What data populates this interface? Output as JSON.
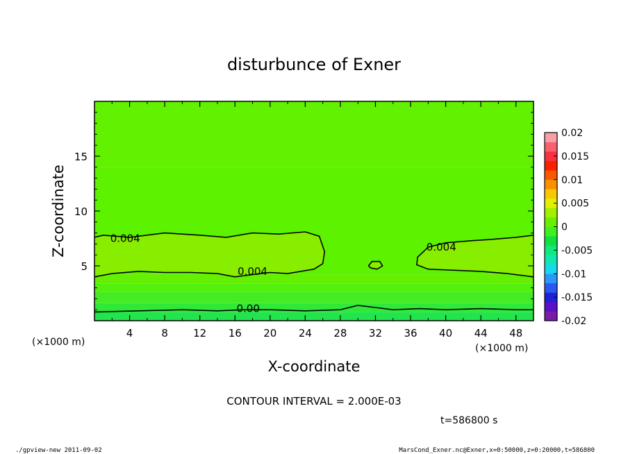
{
  "chart_data": {
    "type": "heatmap",
    "title": "disturbunce of Exner",
    "xlabel": "X-coordinate",
    "ylabel": "Z-coordinate",
    "x_unit_left": "(×1000 m)",
    "x_unit_right": "(×1000 m)",
    "xlim": [
      0,
      50
    ],
    "ylim": [
      0,
      20
    ],
    "x_ticks": [
      4,
      8,
      12,
      16,
      20,
      24,
      28,
      32,
      36,
      40,
      44,
      48
    ],
    "y_ticks": [
      5,
      10,
      15
    ],
    "contour_interval_text": "CONTOUR INTERVAL = 2.000E-03",
    "time_text": "t=586800 s",
    "contour_labels": [
      {
        "text": "0.004",
        "x": 3.5,
        "y": 7.5
      },
      {
        "text": "0.004",
        "x": 18.0,
        "y": 4.5
      },
      {
        "text": "0.004",
        "x": 39.5,
        "y": 6.7
      },
      {
        "text": "0.00",
        "x": 17.5,
        "y": 1.1
      }
    ],
    "colorbar": {
      "min": -0.02,
      "max": 0.02,
      "tick_labels": [
        "0.02",
        "0.015",
        "0.01",
        "0.005",
        "0",
        "-0.005",
        "-0.01",
        "-0.015",
        "-0.02"
      ],
      "colors": [
        "#7a1ca8",
        "#5a10c8",
        "#2020d8",
        "#2a58f0",
        "#2a98f8",
        "#18d8f0",
        "#10e8b0",
        "#10e880",
        "#10e040",
        "#3ef020",
        "#68f000",
        "#a0f000",
        "#e0f000",
        "#f8c800",
        "#f89000",
        "#f85800",
        "#f82000",
        "#f83040",
        "#f86070",
        "#f8a0a8"
      ],
      "colors_order": "bottom-to-top"
    },
    "bands": [
      {
        "y0": 0.0,
        "y1": 0.8,
        "color": "#22e44c"
      },
      {
        "y0": 0.8,
        "y1": 1.6,
        "color": "#30e838"
      },
      {
        "y0": 1.6,
        "y1": 2.6,
        "color": "#44ec24"
      },
      {
        "y0": 2.6,
        "y1": 3.4,
        "color": "#54f010"
      },
      {
        "y0": 3.4,
        "y1": 4.2,
        "color": "#64f000"
      },
      {
        "y0": 4.2,
        "y1": 14.0,
        "color": "#5cf200"
      },
      {
        "y0": 14.0,
        "y1": 20.0,
        "color": "#62f100"
      }
    ],
    "upper_blob_color": "#88ee00",
    "lower_region_color": "#78ef00",
    "contour_lines": [
      {
        "points": [
          [
            0,
            4.0
          ],
          [
            2,
            4.3
          ],
          [
            5,
            4.5
          ],
          [
            8,
            4.4
          ],
          [
            11,
            4.4
          ],
          [
            14,
            4.3
          ],
          [
            16,
            4.0
          ],
          [
            18,
            4.2
          ],
          [
            20,
            4.4
          ],
          [
            22,
            4.3
          ],
          [
            25,
            4.7
          ],
          [
            26,
            5.2
          ],
          [
            26.2,
            6.3
          ],
          [
            25.6,
            7.7
          ],
          [
            24,
            8.1
          ],
          [
            21,
            7.9
          ],
          [
            18,
            8.0
          ],
          [
            15,
            7.6
          ],
          [
            12,
            7.8
          ],
          [
            8,
            8.0
          ],
          [
            4,
            7.6
          ],
          [
            1,
            7.8
          ],
          [
            0,
            7.6
          ]
        ]
      },
      {
        "points": [
          [
            31.2,
            5.0
          ],
          [
            31.6,
            5.4
          ],
          [
            32.5,
            5.4
          ],
          [
            32.8,
            5.0
          ],
          [
            32.2,
            4.7
          ],
          [
            31.5,
            4.8
          ],
          [
            31.2,
            5.0
          ]
        ]
      },
      {
        "points": [
          [
            50,
            4.0
          ],
          [
            47,
            4.3
          ],
          [
            44,
            4.5
          ],
          [
            41,
            4.6
          ],
          [
            38,
            4.7
          ],
          [
            36.7,
            5.1
          ],
          [
            36.8,
            5.8
          ],
          [
            38,
            6.7
          ],
          [
            40,
            7.1
          ],
          [
            43,
            7.3
          ],
          [
            45,
            7.4
          ],
          [
            48,
            7.6
          ],
          [
            50,
            7.8
          ]
        ]
      },
      {
        "points": [
          [
            0,
            0.8
          ],
          [
            5,
            0.9
          ],
          [
            10,
            1.0
          ],
          [
            14,
            0.9
          ],
          [
            17,
            1.0
          ],
          [
            20,
            1.0
          ],
          [
            24,
            0.9
          ],
          [
            28,
            1.0
          ],
          [
            30,
            1.4
          ],
          [
            32,
            1.2
          ],
          [
            34,
            1.0
          ],
          [
            37,
            1.1
          ],
          [
            40,
            1.0
          ],
          [
            44,
            1.1
          ],
          [
            48,
            1.0
          ],
          [
            50,
            1.0
          ]
        ]
      }
    ]
  },
  "footer": {
    "left": "./gpview-new  2011-09-02",
    "right": "MarsCond_Exner.nc@Exner,x=0:50000,z=0:20000,t=586800"
  }
}
